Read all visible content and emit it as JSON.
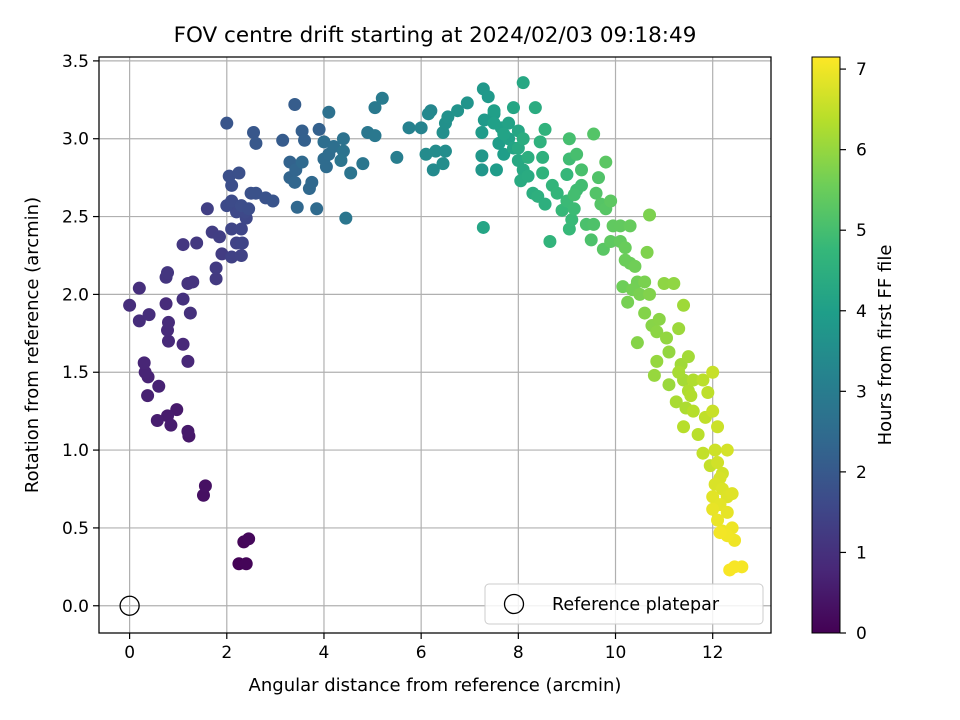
{
  "chart_data": {
    "type": "scatter",
    "title": "FOV centre drift starting at 2024/02/03 09:18:49",
    "xlabel": "Angular distance from reference (arcmin)",
    "ylabel": "Rotation from reference (arcmin)",
    "xlim": [
      -0.63,
      13.2
    ],
    "ylim": [
      -0.175,
      3.525
    ],
    "x_ticks": [
      0,
      2,
      4,
      6,
      8,
      10,
      12
    ],
    "y_ticks": [
      0.0,
      0.5,
      1.0,
      1.5,
      2.0,
      2.5,
      3.0,
      3.5
    ],
    "x_tick_labels": [
      "0",
      "2",
      "4",
      "6",
      "8",
      "10",
      "12"
    ],
    "y_tick_labels": [
      "0.0",
      "0.5",
      "1.0",
      "1.5",
      "2.0",
      "2.5",
      "3.0",
      "3.5"
    ],
    "grid": true,
    "legend": {
      "placement": "lower-right",
      "entries": [
        {
          "label": "Reference platepar",
          "marker": "open-circle"
        }
      ]
    },
    "colorbar": {
      "label": "Hours from first FF file",
      "range": [
        0,
        7.15
      ],
      "ticks": [
        0,
        1,
        2,
        3,
        4,
        5,
        6,
        7
      ],
      "tick_labels": [
        "0",
        "1",
        "2",
        "3",
        "4",
        "5",
        "6",
        "7"
      ],
      "colormap": "viridis",
      "colors": [
        "#440154",
        "#482878",
        "#3e4989",
        "#31688e",
        "#26828e",
        "#1f9e89",
        "#35b779",
        "#6ece58",
        "#b5de2b",
        "#fde725"
      ]
    },
    "reference_point": {
      "x": 0,
      "y": 0,
      "label": "Reference platepar"
    },
    "points": [
      [
        2.25,
        0.27,
        0.05
      ],
      [
        2.4,
        0.27,
        0.08
      ],
      [
        2.35,
        0.41,
        0.12
      ],
      [
        2.45,
        0.43,
        0.15
      ],
      [
        1.52,
        0.71,
        0.3
      ],
      [
        1.56,
        0.77,
        0.33
      ],
      [
        1.22,
        1.09,
        0.45
      ],
      [
        1.2,
        1.12,
        0.48
      ],
      [
        0.97,
        1.26,
        0.5
      ],
      [
        0.78,
        1.22,
        0.55
      ],
      [
        0.85,
        1.16,
        0.58
      ],
      [
        0.57,
        1.19,
        0.6
      ],
      [
        0.37,
        1.35,
        0.65
      ],
      [
        0.6,
        1.41,
        0.68
      ],
      [
        0.38,
        1.47,
        0.7
      ],
      [
        0.32,
        1.5,
        0.72
      ],
      [
        0.3,
        1.56,
        0.75
      ],
      [
        1.2,
        1.57,
        0.8
      ],
      [
        1.1,
        1.68,
        0.83
      ],
      [
        0.8,
        1.7,
        0.85
      ],
      [
        0.78,
        1.77,
        0.87
      ],
      [
        0.8,
        1.82,
        0.88
      ],
      [
        0.75,
        1.94,
        0.9
      ],
      [
        0.2,
        1.83,
        0.92
      ],
      [
        0.4,
        1.87,
        0.93
      ],
      [
        0.0,
        1.93,
        0.95
      ],
      [
        0.2,
        2.04,
        0.97
      ],
      [
        1.25,
        1.88,
        1.0
      ],
      [
        1.1,
        1.97,
        1.02
      ],
      [
        1.2,
        2.07,
        1.05
      ],
      [
        1.3,
        2.08,
        1.07
      ],
      [
        0.75,
        2.11,
        1.1
      ],
      [
        0.78,
        2.14,
        1.12
      ],
      [
        1.1,
        2.32,
        1.15
      ],
      [
        1.38,
        2.33,
        1.18
      ],
      [
        1.78,
        2.1,
        1.22
      ],
      [
        1.78,
        2.17,
        1.25
      ],
      [
        1.9,
        2.26,
        1.28
      ],
      [
        1.7,
        2.4,
        1.3
      ],
      [
        1.85,
        2.37,
        1.32
      ],
      [
        1.6,
        2.55,
        1.35
      ],
      [
        2.1,
        2.24,
        1.4
      ],
      [
        2.3,
        2.25,
        1.42
      ],
      [
        2.2,
        2.33,
        1.45
      ],
      [
        2.32,
        2.33,
        1.48
      ],
      [
        2.1,
        2.42,
        1.5
      ],
      [
        2.3,
        2.42,
        1.52
      ],
      [
        2.4,
        2.49,
        1.55
      ],
      [
        2.2,
        2.53,
        1.58
      ],
      [
        2.38,
        2.53,
        1.6
      ],
      [
        2.0,
        2.57,
        1.62
      ],
      [
        2.1,
        2.6,
        1.65
      ],
      [
        2.3,
        2.57,
        1.68
      ],
      [
        2.45,
        2.55,
        1.7
      ],
      [
        2.1,
        2.7,
        1.72
      ],
      [
        2.05,
        2.76,
        1.75
      ],
      [
        2.25,
        2.78,
        1.78
      ],
      [
        2.5,
        2.65,
        1.8
      ],
      [
        2.6,
        2.65,
        1.82
      ],
      [
        2.8,
        2.62,
        1.85
      ],
      [
        2.95,
        2.6,
        1.88
      ],
      [
        2.0,
        3.1,
        1.9
      ],
      [
        2.55,
        3.04,
        1.95
      ],
      [
        2.6,
        2.97,
        1.98
      ],
      [
        3.15,
        2.99,
        2.05
      ],
      [
        3.4,
        3.22,
        2.1
      ],
      [
        3.55,
        3.05,
        2.15
      ],
      [
        3.6,
        2.99,
        2.18
      ],
      [
        3.9,
        3.06,
        2.2
      ],
      [
        3.3,
        2.85,
        2.25
      ],
      [
        3.3,
        2.75,
        2.3
      ],
      [
        3.42,
        2.8,
        2.32
      ],
      [
        3.4,
        2.72,
        2.35
      ],
      [
        3.45,
        2.56,
        2.38
      ],
      [
        3.7,
        2.68,
        2.4
      ],
      [
        3.75,
        2.72,
        2.42
      ],
      [
        3.55,
        2.85,
        2.45
      ],
      [
        3.85,
        2.55,
        2.48
      ],
      [
        4.05,
        2.82,
        2.5
      ],
      [
        4.0,
        2.87,
        2.52
      ],
      [
        4.1,
        2.9,
        2.55
      ],
      [
        4.0,
        2.98,
        2.58
      ],
      [
        4.2,
        2.95,
        2.6
      ],
      [
        4.1,
        3.17,
        2.65
      ],
      [
        4.4,
        3.0,
        2.7
      ],
      [
        4.4,
        2.92,
        2.72
      ],
      [
        4.55,
        2.78,
        2.75
      ],
      [
        4.35,
        2.86,
        2.78
      ],
      [
        4.8,
        2.84,
        2.8
      ],
      [
        4.45,
        2.49,
        2.82
      ],
      [
        4.9,
        3.04,
        2.85
      ],
      [
        5.05,
        3.02,
        2.88
      ],
      [
        5.05,
        3.2,
        2.9
      ],
      [
        5.2,
        3.26,
        2.95
      ],
      [
        5.5,
        2.88,
        3.05
      ],
      [
        5.75,
        3.07,
        3.15
      ],
      [
        6.0,
        3.07,
        3.2
      ],
      [
        6.2,
        3.18,
        3.3
      ],
      [
        6.15,
        3.16,
        3.35
      ],
      [
        6.25,
        2.8,
        3.4
      ],
      [
        6.1,
        2.9,
        3.42
      ],
      [
        6.3,
        2.92,
        3.45
      ],
      [
        6.45,
        2.84,
        3.48
      ],
      [
        6.5,
        2.92,
        3.5
      ],
      [
        6.45,
        3.04,
        3.55
      ],
      [
        6.5,
        3.1,
        3.58
      ],
      [
        6.55,
        3.14,
        3.6
      ],
      [
        6.75,
        3.18,
        3.65
      ],
      [
        6.95,
        3.23,
        3.7
      ],
      [
        7.25,
        2.8,
        3.75
      ],
      [
        7.25,
        2.89,
        3.78
      ],
      [
        7.28,
        3.32,
        3.8
      ],
      [
        7.38,
        3.27,
        3.82
      ],
      [
        7.3,
        3.12,
        3.85
      ],
      [
        7.25,
        3.04,
        3.88
      ],
      [
        7.5,
        3.16,
        3.9
      ],
      [
        7.55,
        2.8,
        3.92
      ],
      [
        7.6,
        2.97,
        3.95
      ],
      [
        7.7,
        2.9,
        3.98
      ],
      [
        7.5,
        3.18,
        4.0
      ],
      [
        7.5,
        3.1,
        4.02
      ],
      [
        7.65,
        3.07,
        4.05
      ],
      [
        7.8,
        3.0,
        4.08
      ],
      [
        7.8,
        3.1,
        4.1
      ],
      [
        7.7,
        3.03,
        4.12
      ],
      [
        7.9,
        2.94,
        4.15
      ],
      [
        7.28,
        2.43,
        4.18
      ],
      [
        7.9,
        3.2,
        4.2
      ],
      [
        8.0,
        3.05,
        4.22
      ],
      [
        8.1,
        3.36,
        4.25
      ],
      [
        8.0,
        2.86,
        4.28
      ],
      [
        8.1,
        2.8,
        4.3
      ],
      [
        8.0,
        2.94,
        4.32
      ],
      [
        8.05,
        2.73,
        4.35
      ],
      [
        8.2,
        2.76,
        4.38
      ],
      [
        8.35,
        3.2,
        4.4
      ],
      [
        8.1,
        3.0,
        4.42
      ],
      [
        8.3,
        2.65,
        4.45
      ],
      [
        8.2,
        2.88,
        4.48
      ],
      [
        8.4,
        2.63,
        4.5
      ],
      [
        8.55,
        2.58,
        4.52
      ],
      [
        8.5,
        2.88,
        4.55
      ],
      [
        8.45,
        2.98,
        4.58
      ],
      [
        8.5,
        2.78,
        4.6
      ],
      [
        8.55,
        3.06,
        4.62
      ],
      [
        8.65,
        2.34,
        4.65
      ],
      [
        8.7,
        2.7,
        4.68
      ],
      [
        8.8,
        2.65,
        4.7
      ],
      [
        9.0,
        2.77,
        4.75
      ],
      [
        8.9,
        2.54,
        4.78
      ],
      [
        9.05,
        2.42,
        4.8
      ],
      [
        9.1,
        2.48,
        4.82
      ],
      [
        9.0,
        2.6,
        4.85
      ],
      [
        9.15,
        2.55,
        4.87
      ],
      [
        9.2,
        2.67,
        4.9
      ],
      [
        9.05,
        2.87,
        4.92
      ],
      [
        9.3,
        2.7,
        4.95
      ],
      [
        9.15,
        2.64,
        4.98
      ],
      [
        9.05,
        3.0,
        5.0
      ],
      [
        9.2,
        2.9,
        5.02
      ],
      [
        9.3,
        2.8,
        5.05
      ],
      [
        9.4,
        2.45,
        5.08
      ],
      [
        9.5,
        2.35,
        5.1
      ],
      [
        9.55,
        2.45,
        5.12
      ],
      [
        9.65,
        2.75,
        5.15
      ],
      [
        9.6,
        2.65,
        5.18
      ],
      [
        9.55,
        3.03,
        5.2
      ],
      [
        9.7,
        2.58,
        5.22
      ],
      [
        9.8,
        2.55,
        5.25
      ],
      [
        9.75,
        2.29,
        5.28
      ],
      [
        9.8,
        2.85,
        5.3
      ],
      [
        9.9,
        2.6,
        5.32
      ],
      [
        9.9,
        2.34,
        5.35
      ],
      [
        9.95,
        2.44,
        5.38
      ],
      [
        10.1,
        2.44,
        5.4
      ],
      [
        10.1,
        2.34,
        5.42
      ],
      [
        10.3,
        2.44,
        5.45
      ],
      [
        10.2,
        2.3,
        5.48
      ],
      [
        10.3,
        2.2,
        5.5
      ],
      [
        10.2,
        2.22,
        5.52
      ],
      [
        10.15,
        2.05,
        5.55
      ],
      [
        10.4,
        2.18,
        5.58
      ],
      [
        10.45,
        2.08,
        5.6
      ],
      [
        10.35,
        2.03,
        5.62
      ],
      [
        10.25,
        1.95,
        5.65
      ],
      [
        10.5,
        2.0,
        5.68
      ],
      [
        10.6,
        2.08,
        5.7
      ],
      [
        10.7,
        2.51,
        5.72
      ],
      [
        10.65,
        2.27,
        5.75
      ],
      [
        10.7,
        2.0,
        5.78
      ],
      [
        10.6,
        1.88,
        5.8
      ],
      [
        10.45,
        1.69,
        5.82
      ],
      [
        10.75,
        1.8,
        5.85
      ],
      [
        10.9,
        1.84,
        5.88
      ],
      [
        10.85,
        1.76,
        5.9
      ],
      [
        11.0,
        2.07,
        5.92
      ],
      [
        11.2,
        2.07,
        5.94
      ],
      [
        11.05,
        1.72,
        5.96
      ],
      [
        11.1,
        1.63,
        5.98
      ],
      [
        10.85,
        1.57,
        6.0
      ],
      [
        10.8,
        1.48,
        6.02
      ],
      [
        11.1,
        1.42,
        6.05
      ],
      [
        11.3,
        1.78,
        6.08
      ],
      [
        11.4,
        1.93,
        6.1
      ],
      [
        11.35,
        1.55,
        6.12
      ],
      [
        11.5,
        1.6,
        6.15
      ],
      [
        11.4,
        1.45,
        6.18
      ],
      [
        11.3,
        1.5,
        6.2
      ],
      [
        11.25,
        1.31,
        6.22
      ],
      [
        11.45,
        1.27,
        6.25
      ],
      [
        11.5,
        1.38,
        6.28
      ],
      [
        11.6,
        1.45,
        6.3
      ],
      [
        11.55,
        1.35,
        6.32
      ],
      [
        11.6,
        1.25,
        6.35
      ],
      [
        11.4,
        1.15,
        6.38
      ],
      [
        11.7,
        1.1,
        6.4
      ],
      [
        11.8,
        1.45,
        6.42
      ],
      [
        11.9,
        1.37,
        6.45
      ],
      [
        11.85,
        1.21,
        6.48
      ],
      [
        11.8,
        0.98,
        6.5
      ],
      [
        11.95,
        0.9,
        6.52
      ],
      [
        12.0,
        1.5,
        6.55
      ],
      [
        12.0,
        1.25,
        6.57
      ],
      [
        12.1,
        1.15,
        6.6
      ],
      [
        12.05,
        1.0,
        6.62
      ],
      [
        12.1,
        0.92,
        6.65
      ],
      [
        12.2,
        0.85,
        6.67
      ],
      [
        12.3,
        1.0,
        6.7
      ],
      [
        12.15,
        0.82,
        6.72
      ],
      [
        12.05,
        0.78,
        6.75
      ],
      [
        12.2,
        0.75,
        6.77
      ],
      [
        12.3,
        0.7,
        6.8
      ],
      [
        12.4,
        0.72,
        6.82
      ],
      [
        12.0,
        0.7,
        6.85
      ],
      [
        12.15,
        0.65,
        6.87
      ],
      [
        12.3,
        0.6,
        6.9
      ],
      [
        12.0,
        0.62,
        6.92
      ],
      [
        12.1,
        0.55,
        6.94
      ],
      [
        12.2,
        0.48,
        6.96
      ],
      [
        12.4,
        0.5,
        6.98
      ],
      [
        12.45,
        0.42,
        7.0
      ],
      [
        12.3,
        0.45,
        7.02
      ],
      [
        12.15,
        0.47,
        7.04
      ],
      [
        12.6,
        0.25,
        7.06
      ],
      [
        12.45,
        0.25,
        7.08
      ],
      [
        12.35,
        0.23,
        7.1
      ]
    ]
  }
}
